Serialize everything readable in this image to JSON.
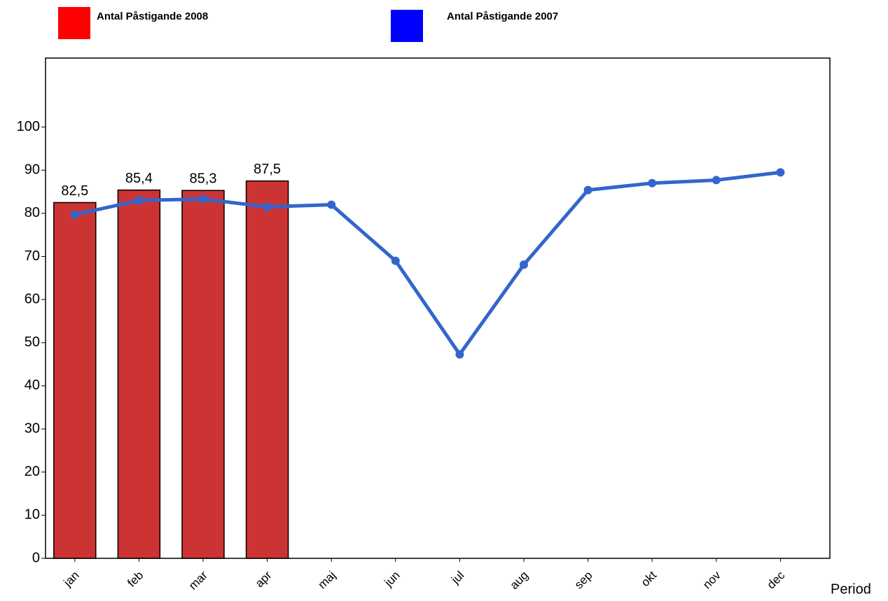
{
  "chart_data": {
    "type": "bar+line",
    "categories": [
      "jan",
      "feb",
      "mar",
      "apr",
      "maj",
      "jun",
      "jul",
      "aug",
      "sep",
      "okt",
      "nov",
      "dec"
    ],
    "x_label": "Period",
    "series": [
      {
        "name": "Antal Påstigande 2008",
        "type": "bar",
        "color": "#cc3333",
        "legend_color": "#ff0000",
        "values": [
          82.5,
          85.4,
          85.3,
          87.5,
          null,
          null,
          null,
          null,
          null,
          null,
          null,
          null
        ],
        "value_labels": [
          "82,5",
          "85,4",
          "85,3",
          "87,5",
          null,
          null,
          null,
          null,
          null,
          null,
          null,
          null
        ]
      },
      {
        "name": "Antal Påstigande 2007",
        "type": "line",
        "color": "#3366cc",
        "legend_color": "#0000ff",
        "values": [
          79.7,
          83.0,
          83.3,
          81.5,
          82.0,
          69.0,
          47.3,
          68.1,
          85.4,
          87.0,
          87.7,
          89.5
        ]
      }
    ],
    "ylim": [
      0,
      116
    ],
    "yticks": [
      0,
      10,
      20,
      30,
      40,
      50,
      60,
      70,
      80,
      90,
      100
    ]
  }
}
